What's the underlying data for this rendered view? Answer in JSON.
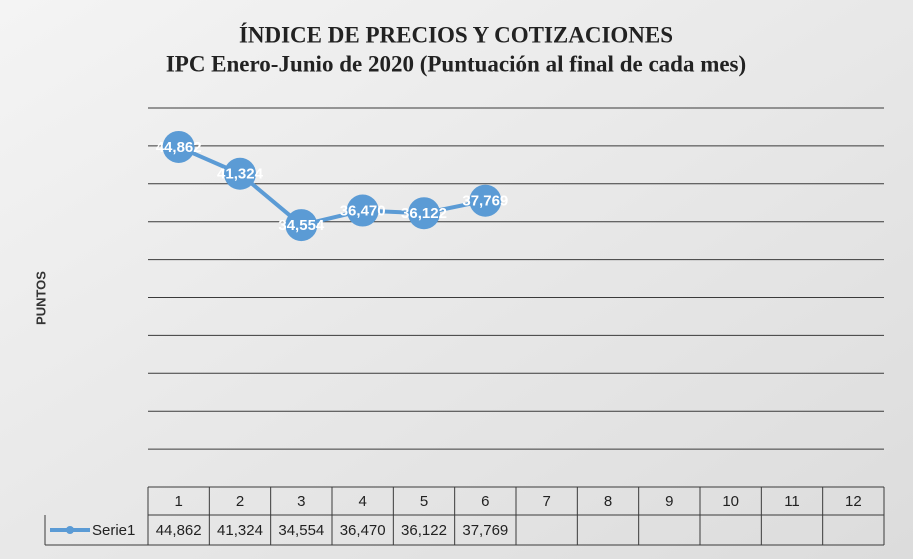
{
  "chart_data": {
    "type": "line",
    "title": "ÍNDICE DE PRECIOS Y COTIZACIONES",
    "subtitle": "IPC Enero-Junio de 2020 (Puntuación al final de cada mes)",
    "y_label": "PUNTOS",
    "categories": [
      "1",
      "2",
      "3",
      "4",
      "5",
      "6",
      "7",
      "8",
      "9",
      "10",
      "11",
      "12"
    ],
    "series": [
      {
        "name": "Serie1",
        "color": "#5b9bd5",
        "values": [
          44.862,
          41.324,
          34.554,
          36.47,
          36.122,
          37.769,
          null,
          null,
          null,
          null,
          null,
          null
        ],
        "value_labels": [
          "44,862",
          "41,324",
          "34,554",
          "36,470",
          "36,122",
          "37,769",
          null,
          null,
          null,
          null,
          null,
          null
        ]
      }
    ],
    "ylim": [
      0,
      50
    ],
    "yticks": [
      0,
      5,
      10,
      15,
      20,
      25,
      30,
      35,
      40,
      45,
      50
    ],
    "grid": true,
    "data_table": true
  }
}
